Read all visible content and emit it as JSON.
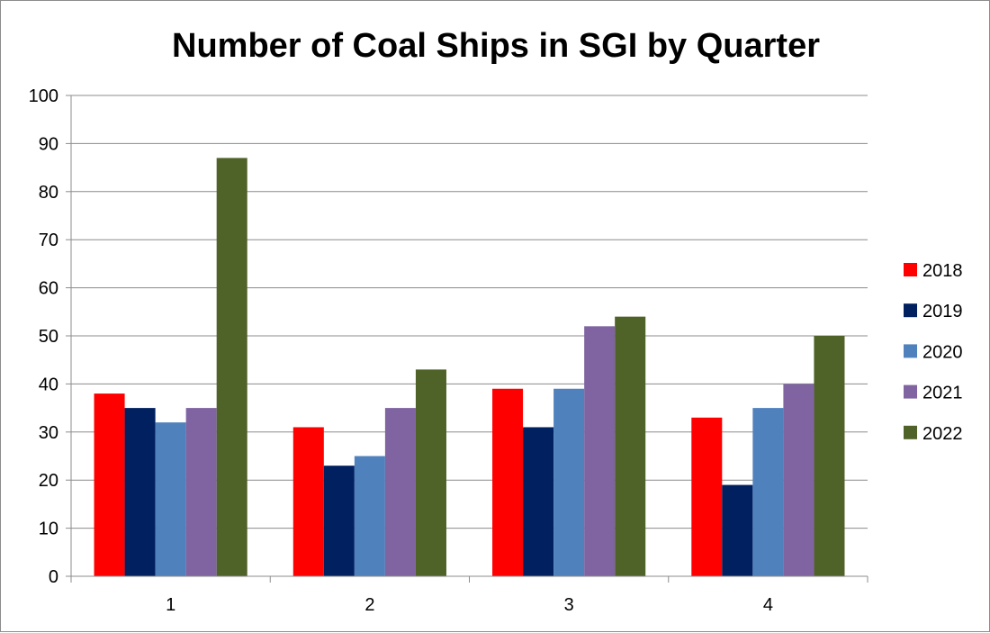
{
  "chart_data": {
    "type": "bar",
    "title": "Number of Coal Ships in SGI by Quarter",
    "xlabel": "",
    "ylabel": "",
    "categories": [
      "1",
      "2",
      "3",
      "4"
    ],
    "ylim": [
      0,
      100
    ],
    "yticks": [
      0,
      10,
      20,
      30,
      40,
      50,
      60,
      70,
      80,
      90,
      100
    ],
    "grid": true,
    "legend_position": "right",
    "series": [
      {
        "name": "2018",
        "color": "#ff0000",
        "values": [
          38,
          31,
          39,
          33
        ]
      },
      {
        "name": "2019",
        "color": "#002060",
        "values": [
          35,
          23,
          31,
          19
        ]
      },
      {
        "name": "2020",
        "color": "#4f81bd",
        "values": [
          32,
          25,
          39,
          35
        ]
      },
      {
        "name": "2021",
        "color": "#8064a2",
        "values": [
          35,
          35,
          52,
          40
        ]
      },
      {
        "name": "2022",
        "color": "#4f6228",
        "values": [
          87,
          43,
          54,
          50
        ]
      }
    ]
  }
}
